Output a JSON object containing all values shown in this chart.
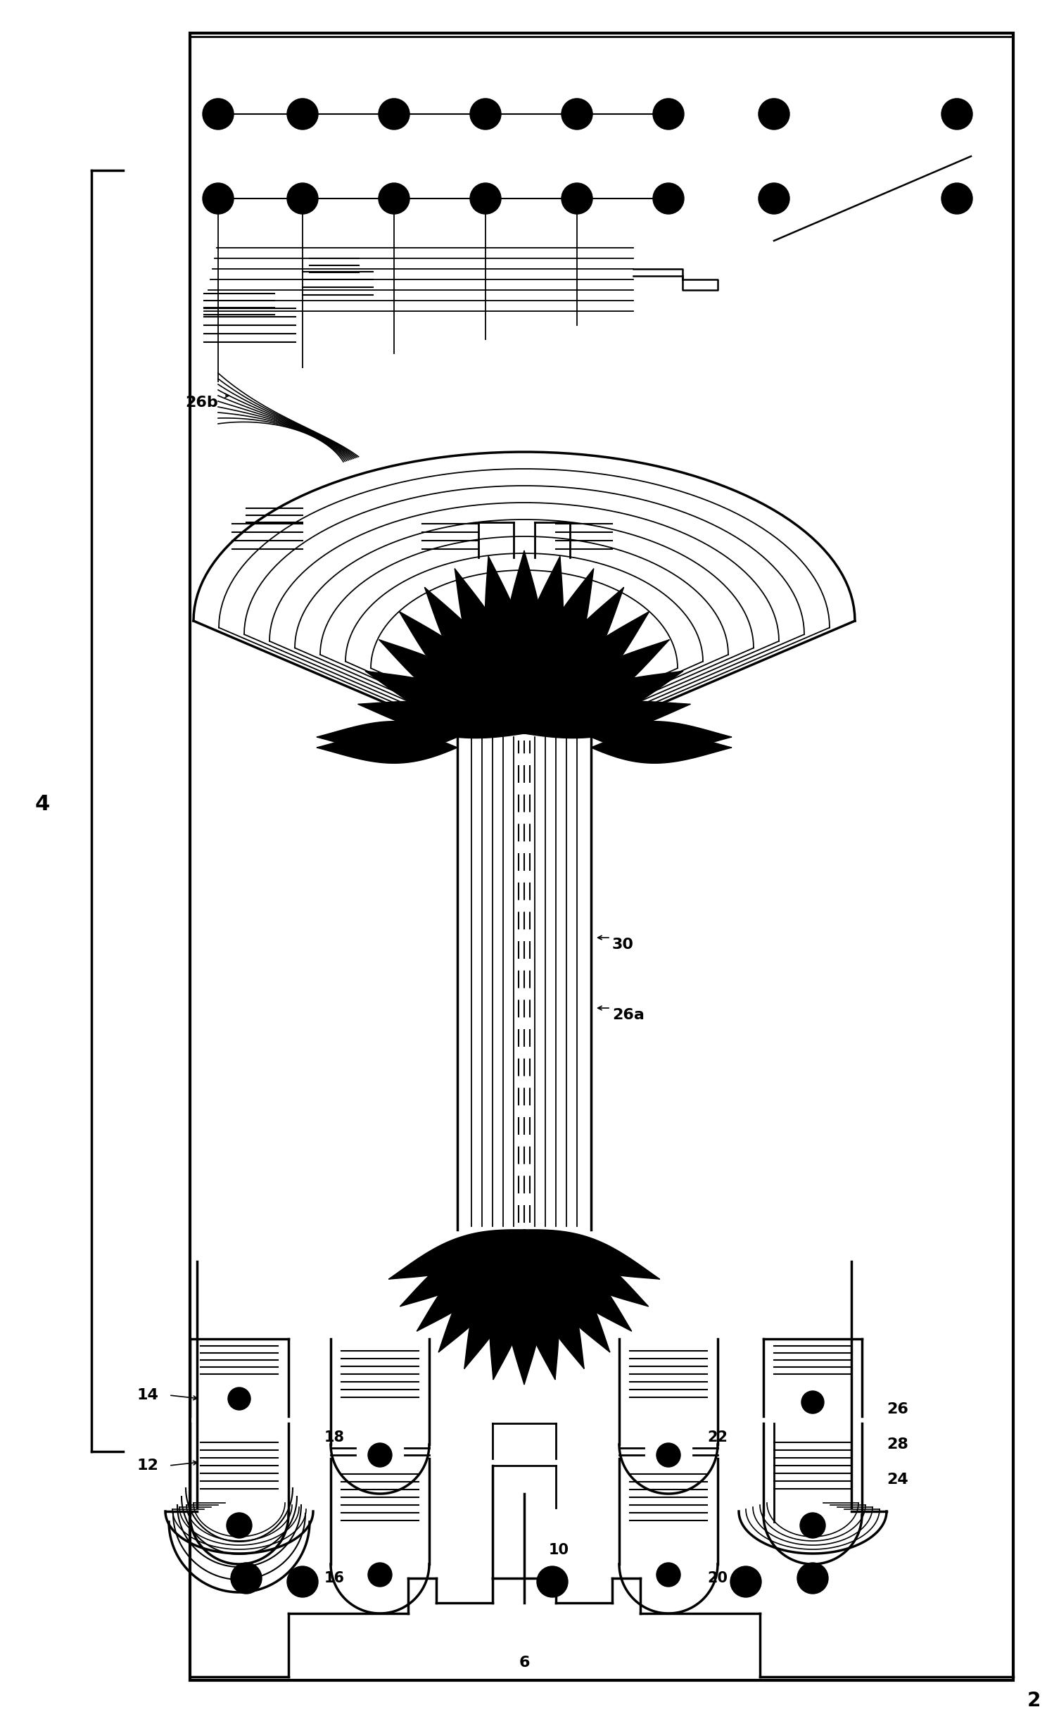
{
  "bg_color": "#ffffff",
  "fig_width": 14.88,
  "fig_height": 24.42,
  "dpi": 100
}
